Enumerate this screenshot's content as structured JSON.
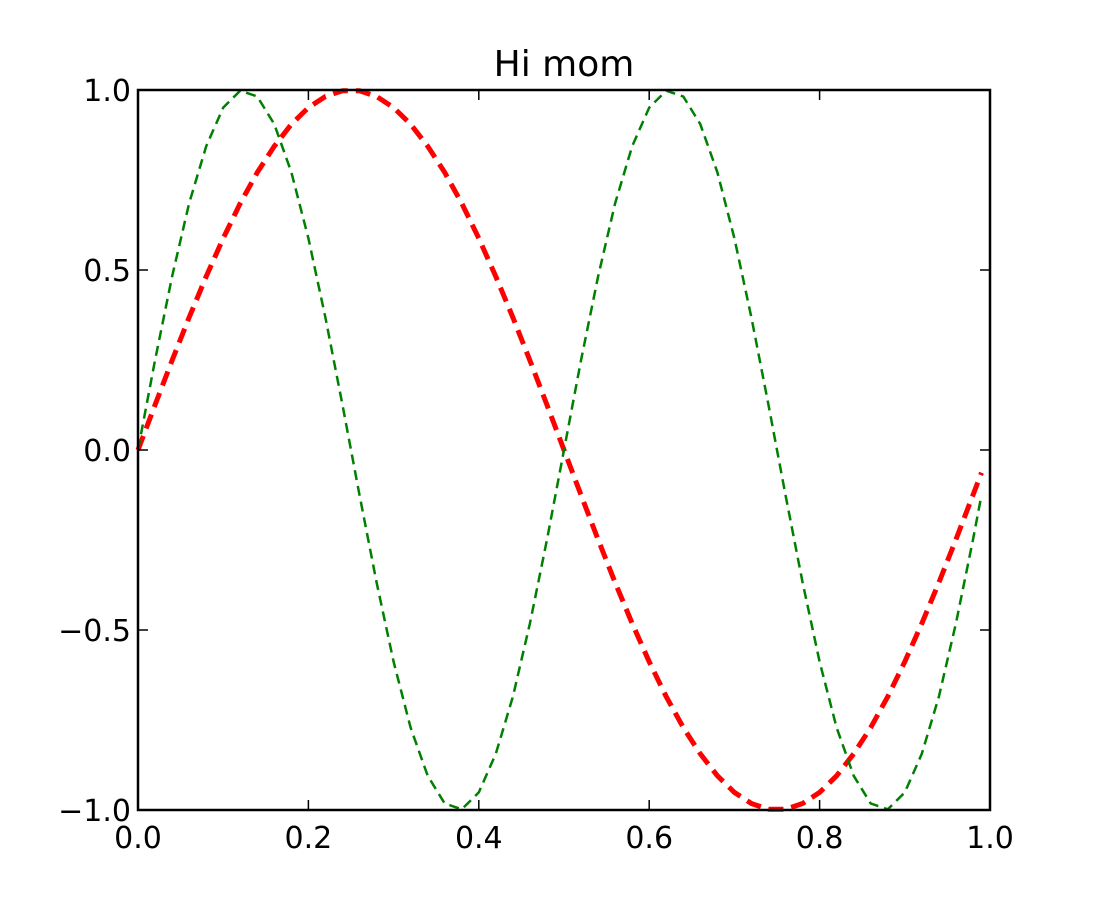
{
  "chart_data": {
    "type": "line",
    "title": "Hi mom",
    "xlabel": "",
    "ylabel": "",
    "xlim": [
      0.0,
      1.0
    ],
    "ylim": [
      -1.0,
      1.0
    ],
    "grid": false,
    "legend": "none",
    "x_ticks": [
      0.0,
      0.2,
      0.4,
      0.6,
      0.8,
      1.0
    ],
    "x_tick_labels": [
      "0.0",
      "0.2",
      "0.4",
      "0.6",
      "0.8",
      "1.0"
    ],
    "y_ticks": [
      1.0,
      0.5,
      0.0,
      -0.5,
      -1.0
    ],
    "y_tick_labels": [
      "1.0",
      "0.5",
      "0.0",
      "−0.5",
      "−1.0"
    ],
    "x": [
      0.0,
      0.02,
      0.04,
      0.06,
      0.08,
      0.1,
      0.12,
      0.14,
      0.16,
      0.18,
      0.2,
      0.22,
      0.24,
      0.26,
      0.28,
      0.3,
      0.32,
      0.34,
      0.36,
      0.38,
      0.4,
      0.42,
      0.44,
      0.46,
      0.48,
      0.5,
      0.52,
      0.54,
      0.56,
      0.58,
      0.6,
      0.62,
      0.64,
      0.66,
      0.68,
      0.7,
      0.72,
      0.74,
      0.76,
      0.78,
      0.8,
      0.82,
      0.84,
      0.86,
      0.88,
      0.9,
      0.92,
      0.94,
      0.96,
      0.98,
      0.99
    ],
    "series": [
      {
        "color": "#ff0000",
        "linestyle": "dashed",
        "linewidth": "thick",
        "values": [
          0.0,
          0.125,
          0.249,
          0.368,
          0.482,
          0.588,
          0.685,
          0.771,
          0.844,
          0.905,
          0.951,
          0.982,
          0.998,
          0.998,
          0.982,
          0.951,
          0.905,
          0.844,
          0.771,
          0.685,
          0.588,
          0.482,
          0.368,
          0.249,
          0.125,
          0.0,
          -0.125,
          -0.249,
          -0.368,
          -0.482,
          -0.588,
          -0.685,
          -0.771,
          -0.844,
          -0.905,
          -0.951,
          -0.982,
          -0.998,
          -0.998,
          -0.982,
          -0.951,
          -0.905,
          -0.844,
          -0.771,
          -0.685,
          -0.588,
          -0.482,
          -0.368,
          -0.249,
          -0.125,
          -0.063
        ]
      },
      {
        "color": "#008000",
        "linestyle": "dashed",
        "linewidth": "thin",
        "values": [
          0.0,
          0.249,
          0.482,
          0.685,
          0.844,
          0.951,
          0.998,
          0.982,
          0.905,
          0.771,
          0.588,
          0.368,
          0.125,
          -0.125,
          -0.368,
          -0.588,
          -0.771,
          -0.905,
          -0.982,
          -0.998,
          -0.951,
          -0.844,
          -0.685,
          -0.482,
          -0.249,
          0.0,
          0.249,
          0.482,
          0.685,
          0.844,
          0.951,
          0.998,
          0.982,
          0.905,
          0.771,
          0.588,
          0.368,
          0.125,
          -0.125,
          -0.368,
          -0.588,
          -0.771,
          -0.905,
          -0.982,
          -0.998,
          -0.951,
          -0.844,
          -0.685,
          -0.482,
          -0.249,
          -0.125
        ]
      }
    ]
  }
}
